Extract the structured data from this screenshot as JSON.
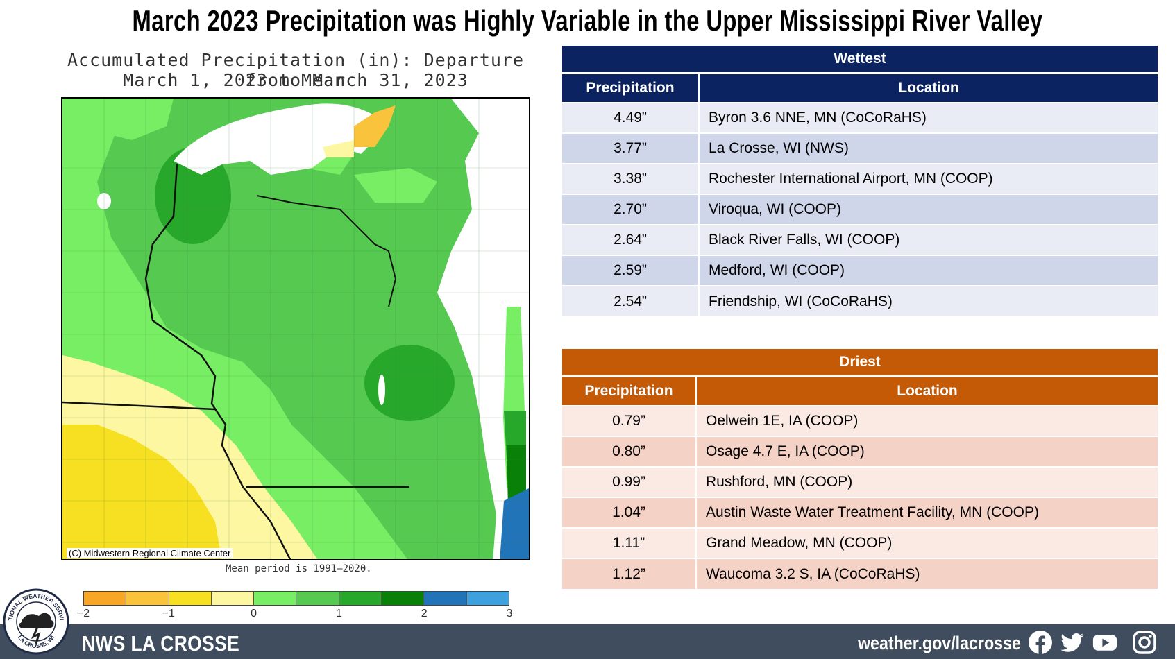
{
  "title": "March 2023 Precipitation was Highly Variable in the Upper Mississippi River Valley",
  "map": {
    "title_line1": "Accumulated Precipitation (in): Departure from Mean",
    "title_line2": "March 1, 2023 to March 31, 2023",
    "credit": "(C) Midwestern Regional Climate Center",
    "mean_note": "Mean period is 1991–2020.",
    "legend_colors": [
      "#f7a626",
      "#f9c33c",
      "#f7df22",
      "#fdf7a2",
      "#77ee63",
      "#55c950",
      "#28a82a",
      "#098108",
      "#2274b8",
      "#3da0df"
    ],
    "legend_ticks": [
      "−2",
      "−1",
      "0",
      "1",
      "2",
      "3"
    ]
  },
  "wettest": {
    "title": "Wettest",
    "col_precip": "Precipitation",
    "col_location": "Location",
    "header_color": "#0b2361",
    "rows": [
      {
        "precip": "4.49”",
        "location": "Byron 3.6 NNE, MN (CoCoRaHS)"
      },
      {
        "precip": "3.77”",
        "location": "La Crosse, WI (NWS)"
      },
      {
        "precip": "3.38”",
        "location": "Rochester International Airport, MN (COOP)"
      },
      {
        "precip": "2.70”",
        "location": "Viroqua, WI (COOP)"
      },
      {
        "precip": "2.64”",
        "location": "Black River Falls, WI (COOP)"
      },
      {
        "precip": "2.59”",
        "location": "Medford, WI (COOP)"
      },
      {
        "precip": "2.54”",
        "location": "Friendship, WI (CoCoRaHS)"
      }
    ]
  },
  "driest": {
    "title": "Driest",
    "col_precip": "Precipitation",
    "col_location": "Location",
    "header_color": "#c55a06",
    "rows": [
      {
        "precip": "0.79”",
        "location": "Oelwein 1E, IA (COOP)"
      },
      {
        "precip": "0.80”",
        "location": "Osage 4.7 E, IA (COOP)"
      },
      {
        "precip": "0.99”",
        "location": "Rushford, MN (COOP)"
      },
      {
        "precip": "1.04”",
        "location": "Austin Waste Water Treatment Facility, MN (COOP)"
      },
      {
        "precip": "1.11”",
        "location": "Grand Meadow, MN (COOP)"
      },
      {
        "precip": "1.12”",
        "location": "Waucoma 3.2 S, IA (CoCoRaHS)"
      }
    ]
  },
  "footer": {
    "name": "NWS LA CROSSE",
    "url": "weather.gov/lacrosse",
    "logo_text_top": "NATIONAL WEATHER SERVICE",
    "logo_text_bottom": "LA CROSSE, WI",
    "icons": [
      "facebook-icon",
      "twitter-icon",
      "youtube-icon",
      "instagram-icon"
    ]
  }
}
